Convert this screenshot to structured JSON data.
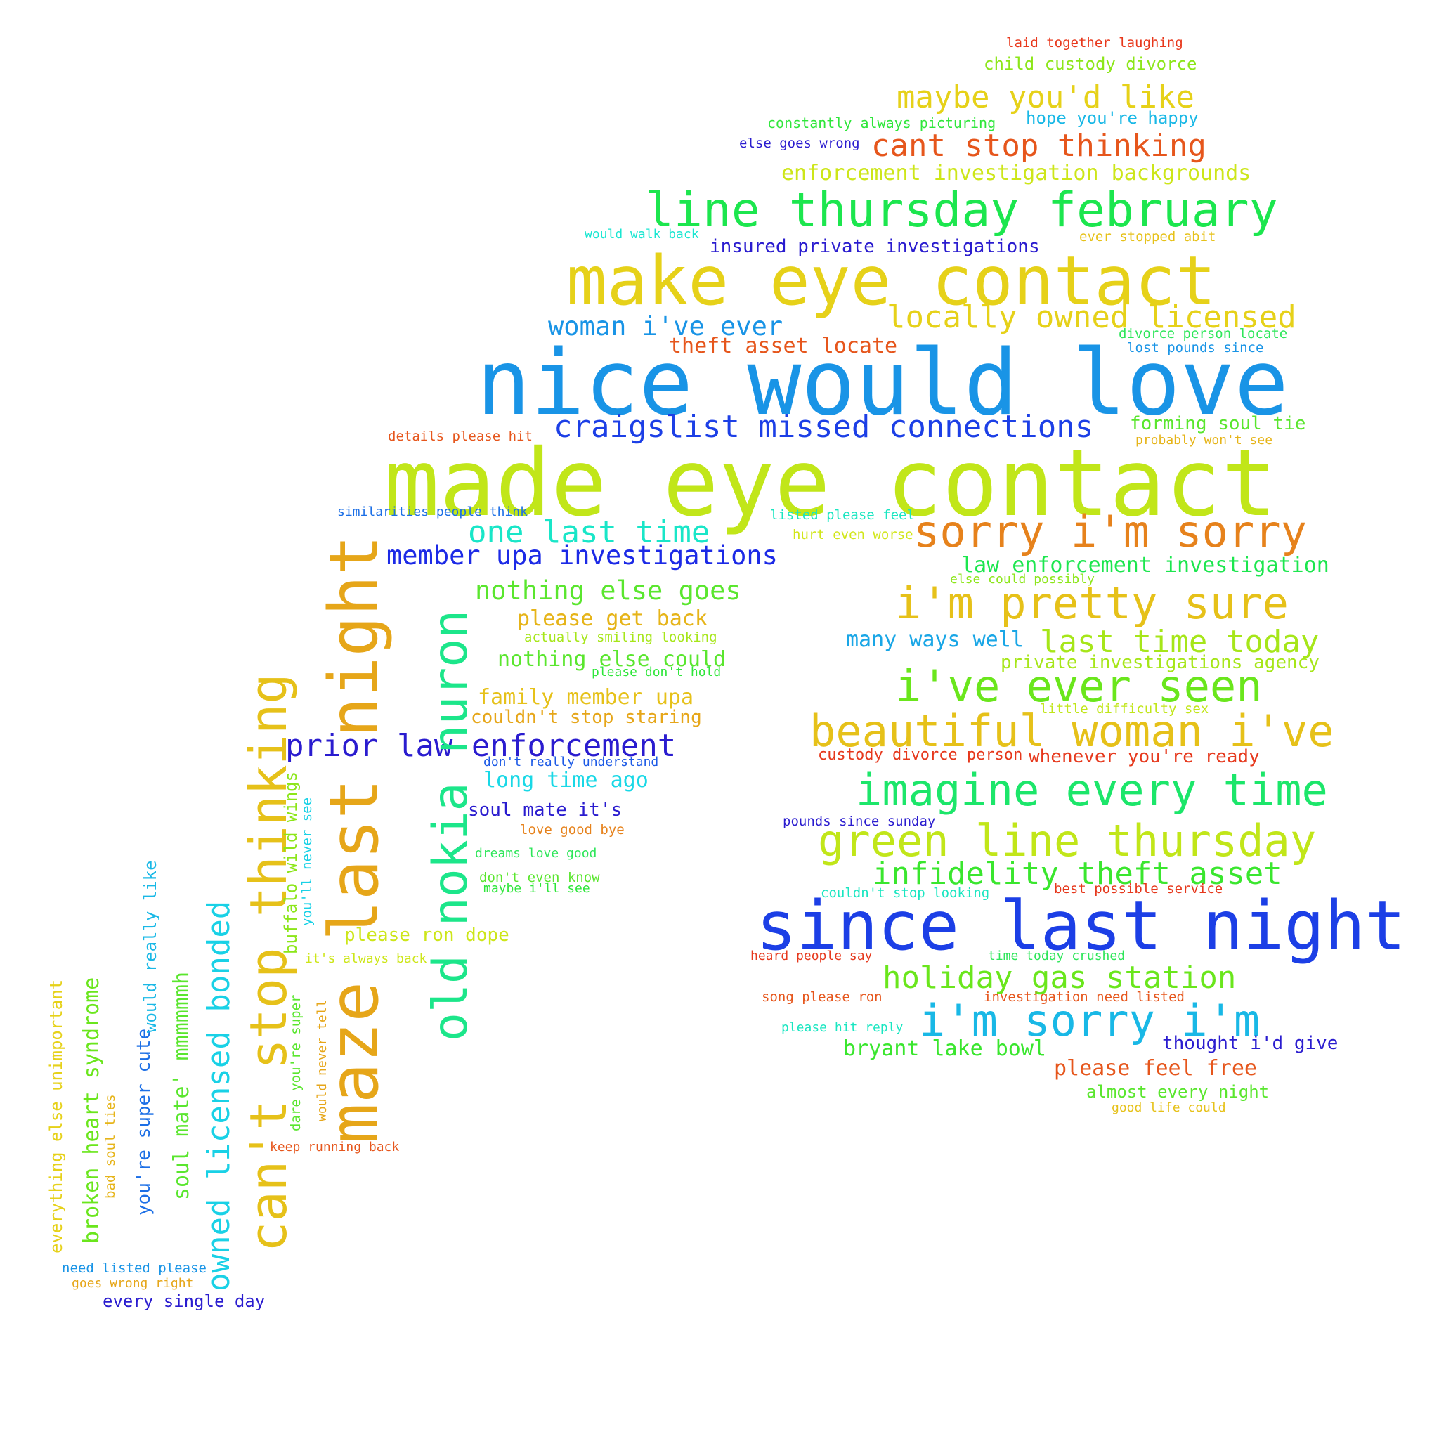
{
  "words": [
    {
      "text": "laid together laughing",
      "color": "#e8381c"
    },
    {
      "text": "child custody divorce",
      "color": "#8ce619"
    },
    {
      "text": "maybe you'd like",
      "color": "#e6d119"
    },
    {
      "text": "constantly always picturing",
      "color": "#2ee63a"
    },
    {
      "text": "hope you're happy",
      "color": "#19b8e6"
    },
    {
      "text": "else goes wrong",
      "color": "#2a1ccf"
    },
    {
      "text": "cant stop thinking",
      "color": "#e6561c"
    },
    {
      "text": "enforcement investigation backgrounds",
      "color": "#cde619"
    },
    {
      "text": "line thursday february",
      "color": "#1ce64e"
    },
    {
      "text": "would walk back",
      "color": "#19e6d1"
    },
    {
      "text": "insured private investigations",
      "color": "#2a1ccf"
    },
    {
      "text": "ever stopped abit",
      "color": "#e6c119"
    },
    {
      "text": "make eye contact",
      "color": "#e6d119"
    },
    {
      "text": "locally owned licensed",
      "color": "#e6d119"
    },
    {
      "text": "woman i've ever",
      "color": "#1994e6"
    },
    {
      "text": "divorce person locate",
      "color": "#2ee65a"
    },
    {
      "text": "theft asset locate",
      "color": "#e6561c"
    },
    {
      "text": "lost pounds since",
      "color": "#1994e6"
    },
    {
      "text": "nice would love",
      "color": "#1994e6"
    },
    {
      "text": "details please hit",
      "color": "#e6561c"
    },
    {
      "text": "craigslist missed connections",
      "color": "#1c3fe6"
    },
    {
      "text": "forming soul tie",
      "color": "#5ae62e"
    },
    {
      "text": "probably won't see",
      "color": "#e6b419"
    },
    {
      "text": "made eye contact",
      "color": "#c1e619"
    },
    {
      "text": "similarities people think",
      "color": "#1c6fe6"
    },
    {
      "text": "listed please feel",
      "color": "#19e6c1"
    },
    {
      "text": "hurt even worse",
      "color": "#d1e619"
    },
    {
      "text": "one last time",
      "color": "#19e6c8"
    },
    {
      "text": "sorry i'm sorry",
      "color": "#e6821c"
    },
    {
      "text": "member upa investigations",
      "color": "#1c2ae6"
    },
    {
      "text": "law enforcement investigation",
      "color": "#1ce64e"
    },
    {
      "text": "else could possibly",
      "color": "#8ce619"
    },
    {
      "text": "nothing else goes",
      "color": "#5ae62e"
    },
    {
      "text": "i'm pretty sure",
      "color": "#e6c119"
    },
    {
      "text": "please get back",
      "color": "#e6b419"
    },
    {
      "text": "actually smiling looking",
      "color": "#a6e619"
    },
    {
      "text": "many ways well",
      "color": "#19a6e6"
    },
    {
      "text": "last time today",
      "color": "#a6e619"
    },
    {
      "text": "nothing else could",
      "color": "#5ae62e"
    },
    {
      "text": "please don't hold",
      "color": "#2ee63a"
    },
    {
      "text": "private investigations agency",
      "color": "#a6e619"
    },
    {
      "text": "i've ever seen",
      "color": "#6ae61c"
    },
    {
      "text": "family member upa",
      "color": "#e6c119"
    },
    {
      "text": "little difficulty sex",
      "color": "#c1e619"
    },
    {
      "text": "couldn't stop staring",
      "color": "#e6a619"
    },
    {
      "text": "beautiful woman i've",
      "color": "#e6c119"
    },
    {
      "text": "prior law enforcement",
      "color": "#2a1ccf"
    },
    {
      "text": "don't really understand",
      "color": "#1c5ae6"
    },
    {
      "text": "custody divorce person",
      "color": "#e6381c"
    },
    {
      "text": "whenever you're ready",
      "color": "#e6381c"
    },
    {
      "text": "long time ago",
      "color": "#19d8e6"
    },
    {
      "text": "imagine every time",
      "color": "#1ce66a"
    },
    {
      "text": "soul mate it's",
      "color": "#2a1ccf"
    },
    {
      "text": "pounds since sunday",
      "color": "#2a1ccf"
    },
    {
      "text": "love good bye",
      "color": "#e6821c"
    },
    {
      "text": "green line thursday",
      "color": "#c1e619"
    },
    {
      "text": "dreams love good",
      "color": "#2ee65a"
    },
    {
      "text": "infidelity theft asset",
      "color": "#3ae62e"
    },
    {
      "text": "don't even know",
      "color": "#5ae62e"
    },
    {
      "text": "maybe i'll see",
      "color": "#2ee63a"
    },
    {
      "text": "couldn't stop looking",
      "color": "#19e6c1"
    },
    {
      "text": "best possible service",
      "color": "#e6381c"
    },
    {
      "text": "since last night",
      "color": "#1c3fe6"
    },
    {
      "text": "please ron dope",
      "color": "#cde619"
    },
    {
      "text": "it's always back",
      "color": "#cde619"
    },
    {
      "text": "heard people say",
      "color": "#e6381c"
    },
    {
      "text": "time today crushed",
      "color": "#2ee65a"
    },
    {
      "text": "holiday gas station",
      "color": "#6ae61c"
    },
    {
      "text": "song please ron",
      "color": "#e6561c"
    },
    {
      "text": "investigation need listed",
      "color": "#e6561c"
    },
    {
      "text": "please hit reply",
      "color": "#19e6c1"
    },
    {
      "text": "i'm sorry i'm",
      "color": "#19b8e6"
    },
    {
      "text": "thought i'd give",
      "color": "#2a1ccf"
    },
    {
      "text": "bryant lake bowl",
      "color": "#3ae62e"
    },
    {
      "text": "please feel free",
      "color": "#e6561c"
    },
    {
      "text": "almost every night",
      "color": "#5ae62e"
    },
    {
      "text": "good life could",
      "color": "#e6c119"
    },
    {
      "text": "keep running back",
      "color": "#e6561c"
    },
    {
      "text": "need listed please",
      "color": "#1994e6"
    },
    {
      "text": "goes wrong right",
      "color": "#e6a619"
    },
    {
      "text": "every single day",
      "color": "#2a1ccf"
    },
    {
      "text": "maze last night",
      "color": "#e6a619"
    },
    {
      "text": "old nokia nuron",
      "color": "#1ce68a"
    },
    {
      "text": "can't stop thinking",
      "color": "#e6c119"
    },
    {
      "text": "owned licensed bonded",
      "color": "#19d1e6"
    },
    {
      "text": "soul mate' mmmmmmh",
      "color": "#5ae62e"
    },
    {
      "text": "broken heart syndrome",
      "color": "#6ae61c"
    },
    {
      "text": "you're super cute",
      "color": "#1c6fe6"
    },
    {
      "text": "would really like",
      "color": "#19b8e6"
    },
    {
      "text": "everything else unimportant",
      "color": "#e6d119"
    },
    {
      "text": "bad soul ties",
      "color": "#e6b419"
    },
    {
      "text": "buffalo wild wings",
      "color": "#8ce619"
    },
    {
      "text": "you'll never see",
      "color": "#19d1e6"
    },
    {
      "text": "dare you're super",
      "color": "#5ae62e"
    },
    {
      "text": "would never tell",
      "color": "#e6a619"
    }
  ]
}
